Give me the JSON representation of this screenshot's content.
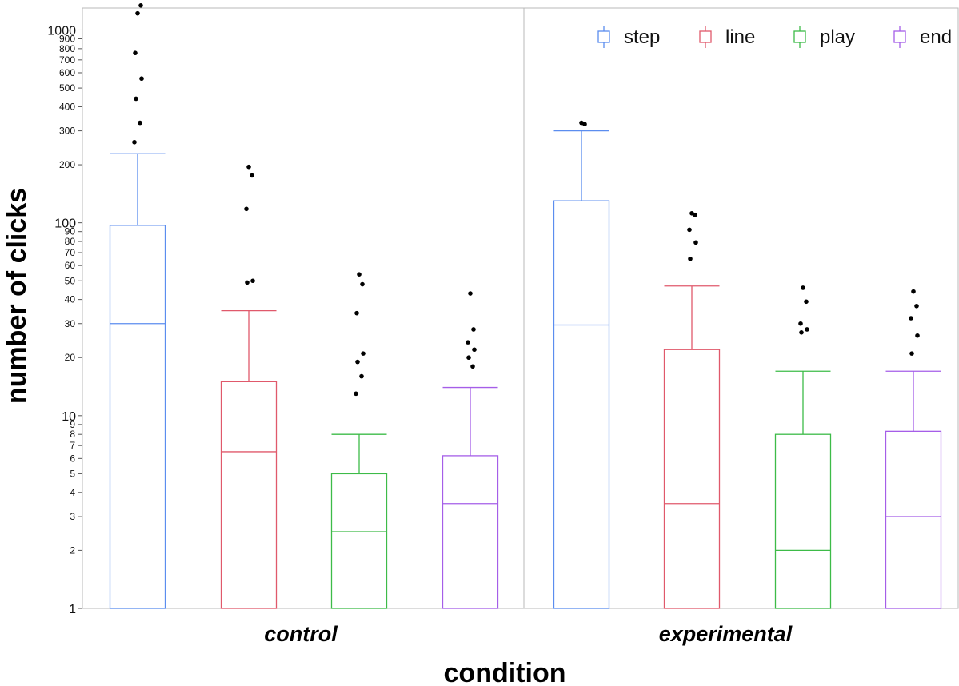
{
  "chart_data": {
    "type": "box",
    "xlabel": "condition",
    "ylabel": "number of clicks",
    "yscale": "log",
    "ylim": [
      1,
      1300
    ],
    "y_tick_labels": [
      "1",
      "2",
      "3",
      "4",
      "5",
      "6",
      "7",
      "8",
      "9",
      "10",
      "20",
      "30",
      "40",
      "50",
      "60",
      "70",
      "80",
      "90",
      "100",
      "200",
      "300",
      "400",
      "500",
      "600",
      "700",
      "800",
      "900",
      "1000"
    ],
    "categories": [
      "control",
      "experimental"
    ],
    "legend_position": "top-right",
    "series": [
      {
        "name": "step",
        "color": "#5b8def",
        "boxes": [
          {
            "category": "control",
            "low": 1,
            "q1": 1,
            "median": 30,
            "q3": 97,
            "high": 228,
            "outliers": [
              1220,
              1340,
              760,
              560,
              440,
              330,
              262
            ]
          },
          {
            "category": "experimental",
            "low": 1,
            "q1": 1,
            "median": 29.5,
            "q3": 130,
            "high": 300,
            "outliers": [
              330,
              325
            ]
          }
        ]
      },
      {
        "name": "line",
        "color": "#e0596b",
        "boxes": [
          {
            "category": "control",
            "low": 1,
            "q1": 1,
            "median": 6.5,
            "q3": 15,
            "high": 35,
            "outliers": [
              195,
              176,
              118,
              50,
              49
            ]
          },
          {
            "category": "experimental",
            "low": 1,
            "q1": 1,
            "median": 3.5,
            "q3": 22,
            "high": 47,
            "outliers": [
              112,
              110,
              92,
              79,
              65
            ]
          }
        ]
      },
      {
        "name": "play",
        "color": "#3dbb48",
        "boxes": [
          {
            "category": "control",
            "low": 1,
            "q1": 1,
            "median": 2.5,
            "q3": 5,
            "high": 8,
            "outliers": [
              54,
              48,
              34,
              21,
              19,
              16,
              13
            ]
          },
          {
            "category": "experimental",
            "low": 1,
            "q1": 1,
            "median": 2,
            "q3": 8,
            "high": 17,
            "outliers": [
              46,
              39,
              30,
              28,
              27
            ]
          }
        ]
      },
      {
        "name": "end",
        "color": "#a55ee8",
        "boxes": [
          {
            "category": "control",
            "low": 1,
            "q1": 1,
            "median": 3.5,
            "q3": 6.2,
            "high": 14,
            "outliers": [
              43,
              28,
              24,
              22,
              20,
              18
            ]
          },
          {
            "category": "experimental",
            "low": 1,
            "q1": 1,
            "median": 3,
            "q3": 8.3,
            "high": 17,
            "outliers": [
              44,
              37,
              32,
              26,
              21
            ]
          }
        ]
      }
    ]
  }
}
